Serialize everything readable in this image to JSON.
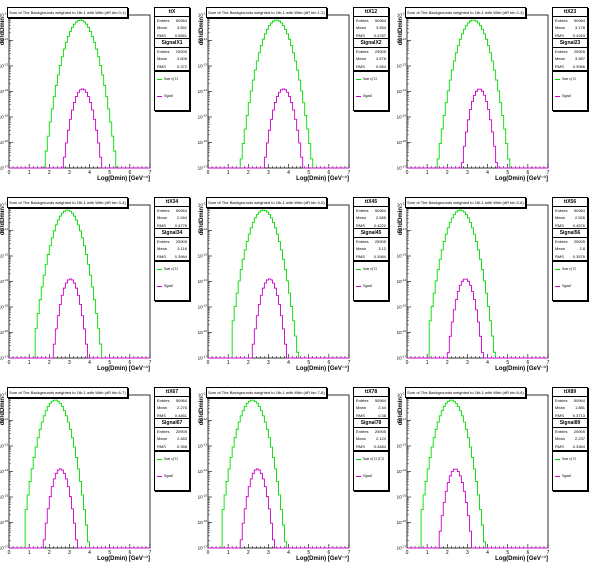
{
  "colors": {
    "background": "#green-placeholder"
  },
  "styles": {
    "bg_color": "#00dd00",
    "sig_color": "#cc00cc",
    "axis_color": "#000000"
  },
  "chart_data": [
    {
      "type": "histogram",
      "title": "Sum of The Backgrounds weighted to 1fb-1 with Wbb (dR bin 0-1)",
      "stat_bkg": {
        "name": "ttX",
        "entries": "50964",
        "mean": "3.651",
        "rms": "0.5561"
      },
      "stat_sig": {
        "name": "SignalX1",
        "entries": "25905",
        "mean": "3.606",
        "rms": "0.372"
      },
      "legend": {
        "bkg": "Sum of Ci",
        "sig": "Signal"
      },
      "xlabel": "Log(Dmin) [GeV⁻¹]",
      "ylabel": "dσ/dDmin",
      "xlim": [
        0,
        7
      ],
      "ylim_exp": [
        -17,
        -11
      ],
      "bkg": {
        "peak": 3.55,
        "width": 0.75,
        "amp": -11.2,
        "range": [
          1.45,
          5.75
        ]
      },
      "sig": {
        "peak": 3.65,
        "width": 0.55,
        "amp": -13.9,
        "range": [
          1.7,
          5.45
        ]
      }
    },
    {
      "type": "histogram",
      "title": "Sum of The Backgrounds weighted to 1fb-1 with Wbb (dR bin 1-2)",
      "stat_bkg": {
        "name": "ttX12",
        "entries": "50964",
        "mean": "3.554",
        "rms": "0.4787"
      },
      "stat_sig": {
        "name": "SignalX2",
        "entries": "25905",
        "mean": "3.676",
        "rms": "0.584"
      },
      "legend": {
        "bkg": "Sum of Ci",
        "sig": "Signal"
      },
      "xlabel": "Log(Dmin) [GeV⁻¹]",
      "ylabel": "dσ/dDmin",
      "xlim": [
        0,
        7
      ],
      "ylim_exp": [
        -17,
        -11
      ],
      "bkg": {
        "peak": 3.4,
        "width": 0.75,
        "amp": -11.2,
        "range": [
          1.45,
          5.55
        ]
      },
      "sig": {
        "peak": 3.75,
        "width": 0.55,
        "amp": -13.9,
        "range": [
          1.7,
          5.4
        ]
      }
    },
    {
      "type": "histogram",
      "title": "Sum of The Backgrounds weighted to 1fb-1 with Wbb (dR bin 2-3)",
      "stat_bkg": {
        "name": "ttX23",
        "entries": "50964",
        "mean": "3.178",
        "rms": "0.4263"
      },
      "stat_sig": {
        "name": "Signal23",
        "entries": "25905",
        "mean": "3.587",
        "rms": "0.3966"
      },
      "legend": {
        "bkg": "Sum of Ci",
        "sig": "Signal"
      },
      "xlabel": "Log(Dmin) [GeV⁻¹]",
      "ylabel": "dσ/dDmin",
      "xlim": [
        0,
        7
      ],
      "ylim_exp": [
        -17,
        -11
      ],
      "bkg": {
        "peak": 3.3,
        "width": 0.75,
        "amp": -11.2,
        "range": [
          1.45,
          5.35
        ]
      },
      "sig": {
        "peak": 3.6,
        "width": 0.5,
        "amp": -13.9,
        "range": [
          1.8,
          5.3
        ]
      }
    },
    {
      "type": "histogram",
      "title": "Sum of The Backgrounds weighted to 1fb-1 with Wbb (dR bin 3-4)",
      "stat_bkg": {
        "name": "ttX34",
        "entries": "50964",
        "mean": "2.944",
        "rms": "0.4776"
      },
      "stat_sig": {
        "name": "Signal34",
        "entries": "25905",
        "mean": "3.116",
        "rms": "0.3964"
      },
      "legend": {
        "bkg": "Sum of Ci",
        "sig": "Signal"
      },
      "xlabel": "Log(Dmin) [GeV⁻¹]",
      "ylabel": "dσ/dDmin",
      "xlim": [
        0,
        7
      ],
      "ylim_exp": [
        -17,
        -11
      ],
      "bkg": {
        "peak": 2.9,
        "width": 0.72,
        "amp": -11.2,
        "range": [
          1.3,
          4.8
        ]
      },
      "sig": {
        "peak": 3.05,
        "width": 0.5,
        "amp": -13.9,
        "range": [
          1.55,
          4.75
        ]
      }
    },
    {
      "type": "histogram",
      "title": "Sum of The Backgrounds weighted to 1fb-1 with Wbb (dR bin 4-5)",
      "stat_bkg": {
        "name": "ttX45",
        "entries": "50964",
        "mean": "2.685",
        "rms": "0.4222"
      },
      "stat_sig": {
        "name": "Signal45",
        "entries": "25905",
        "mean": "3.12",
        "rms": "0.3984"
      },
      "legend": {
        "bkg": "Sum of Ci",
        "sig": "Signal"
      },
      "xlabel": "Log(Dmin) [GeV⁻¹]",
      "ylabel": "dσ/dDmin",
      "xlim": [
        0,
        7
      ],
      "ylim_exp": [
        -17,
        -11
      ],
      "bkg": {
        "peak": 2.75,
        "width": 0.72,
        "amp": -11.2,
        "range": [
          1.25,
          4.75
        ]
      },
      "sig": {
        "peak": 3.05,
        "width": 0.5,
        "amp": -13.9,
        "range": [
          1.5,
          4.6
        ]
      }
    },
    {
      "type": "histogram",
      "title": "Sum of The Backgrounds weighted to 1fb-1 with Wbb (dR bin 5-6)",
      "stat_bkg": {
        "name": "ttX56",
        "entries": "50964",
        "mean": "2.526",
        "rms": "0.4576"
      },
      "stat_sig": {
        "name": "Signal56",
        "entries": "25905",
        "mean": "2.8",
        "rms": "0.3576"
      },
      "legend": {
        "bkg": "Sum of Ci",
        "sig": "Signal"
      },
      "xlabel": "Log(Dmin) [GeV⁻¹]",
      "ylabel": "dσ/dDmin",
      "xlim": [
        0,
        7
      ],
      "ylim_exp": [
        -17,
        -11
      ],
      "bkg": {
        "peak": 2.65,
        "width": 0.72,
        "amp": -11.2,
        "range": [
          1.1,
          4.6
        ]
      },
      "sig": {
        "peak": 2.9,
        "width": 0.5,
        "amp": -13.9,
        "range": [
          1.4,
          4.5
        ]
      }
    },
    {
      "type": "histogram",
      "title": "Sum of The Backgrounds weighted to 1fb-1 with Wbb (dR bin 6-7)",
      "stat_bkg": {
        "name": "ttX67",
        "entries": "50964",
        "mean": "2.276",
        "rms": "0.4461"
      },
      "stat_sig": {
        "name": "Signal67",
        "entries": "25905",
        "mean": "2.483",
        "rms": "0.358"
      },
      "legend": {
        "bkg": "Sum of Ci",
        "sig": "Signal"
      },
      "xlabel": "Log(Dmin) [GeV⁻¹]",
      "ylabel": "dσ/dDmin",
      "xlim": [
        0,
        7
      ],
      "ylim_exp": [
        -17,
        -11
      ],
      "bkg": {
        "peak": 2.3,
        "width": 0.7,
        "amp": -11.2,
        "range": [
          0.85,
          4.2
        ]
      },
      "sig": {
        "peak": 2.55,
        "width": 0.48,
        "amp": -13.9,
        "range": [
          1.15,
          4.05
        ]
      }
    },
    {
      "type": "histogram",
      "title": "Sum of The Backgrounds weighted to 1fb-1 with Wbb (dR bin 7-8)",
      "stat_bkg": {
        "name": "ttX78",
        "entries": "50964",
        "mean": "2.44",
        "rms": "0.38"
      },
      "stat_sig": {
        "name": "Signal78",
        "entries": "25905",
        "mean": "2.124",
        "rms": "0.3484"
      },
      "legend": {
        "bkg": "Sum of Ci (Ci)",
        "sig": "Signal"
      },
      "xlabel": "Log(Dmin) [GeV⁻¹]",
      "ylabel": "dσ/dDmin",
      "xlim": [
        0,
        7
      ],
      "ylim_exp": [
        -17,
        -11
      ],
      "bkg": {
        "peak": 2.2,
        "width": 0.7,
        "amp": -11.2,
        "range": [
          0.75,
          4.1
        ]
      },
      "sig": {
        "peak": 2.45,
        "width": 0.48,
        "amp": -13.9,
        "range": [
          1.1,
          3.95
        ]
      }
    },
    {
      "type": "histogram",
      "title": "Sum of The Backgrounds weighted to 1fb-1 with Wbb (dR bin 8-9)",
      "stat_bkg": {
        "name": "ttX89",
        "entries": "50964",
        "mean": "1.881",
        "rms": "0.3713"
      },
      "stat_sig": {
        "name": "Signal89",
        "entries": "25905",
        "mean": "2.237",
        "rms": "0.3364"
      },
      "legend": {
        "bkg": "Sum of Ci",
        "sig": "Signal"
      },
      "xlabel": "Log(Dmin) [GeV⁻¹]",
      "ylabel": "dσ/dDmin",
      "xlim": [
        0,
        7
      ],
      "ylim_exp": [
        -17,
        -11
      ],
      "bkg": {
        "peak": 2.2,
        "width": 0.7,
        "amp": -11.2,
        "range": [
          0.7,
          4.05
        ]
      },
      "sig": {
        "peak": 2.4,
        "width": 0.48,
        "amp": -13.9,
        "range": [
          1.05,
          3.95
        ]
      }
    }
  ]
}
